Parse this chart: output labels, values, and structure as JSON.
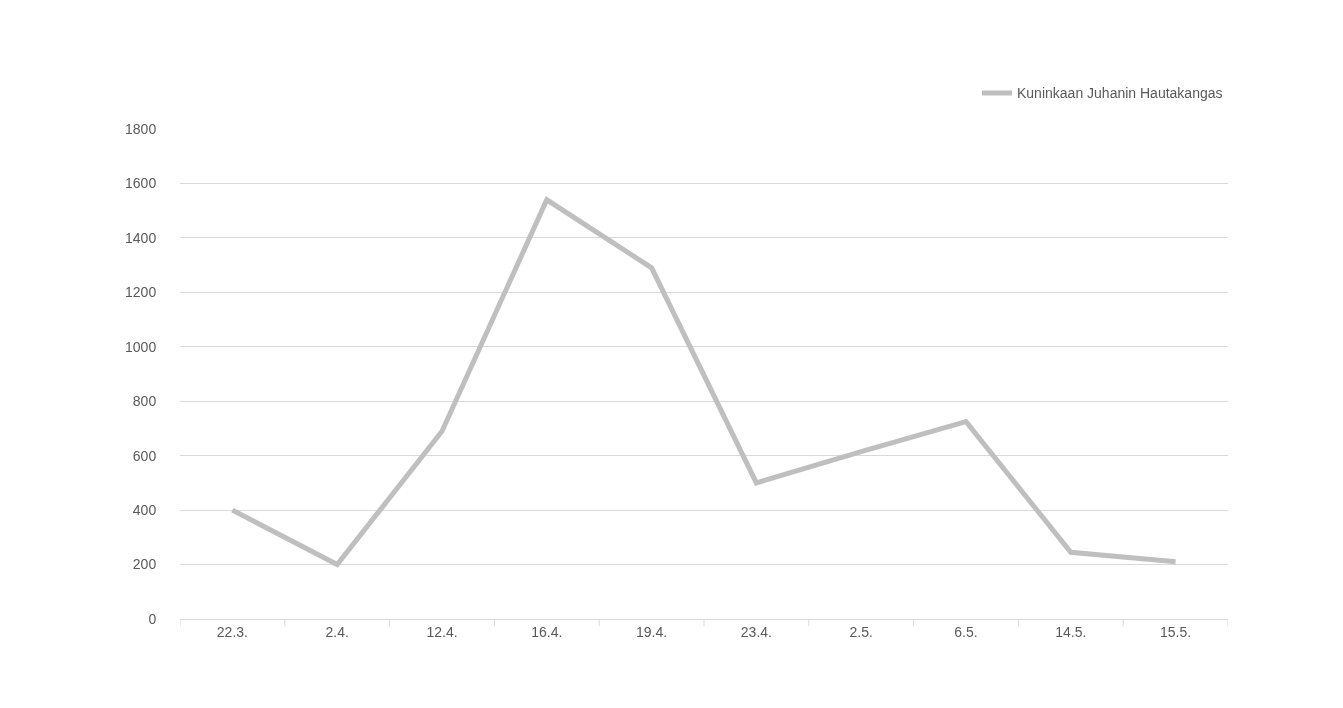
{
  "chart_data": {
    "type": "line",
    "categories": [
      "22.3.",
      "2.4.",
      "12.4.",
      "16.4.",
      "19.4.",
      "23.4.",
      "2.5.",
      "6.5.",
      "14.5.",
      "15.5."
    ],
    "series": [
      {
        "name": "Kuninkaan Juhanin Hautakangas",
        "color": "#bfbfbf",
        "values": [
          400,
          200,
          690,
          1540,
          1290,
          500,
          615,
          725,
          245,
          210
        ]
      }
    ],
    "ylim": [
      0,
      1800
    ],
    "yticks": [
      0,
      200,
      400,
      600,
      800,
      1000,
      1200,
      1400,
      1600,
      1800
    ],
    "grid": "y",
    "legend": "top right",
    "marker": "none",
    "line_style": "solid"
  }
}
